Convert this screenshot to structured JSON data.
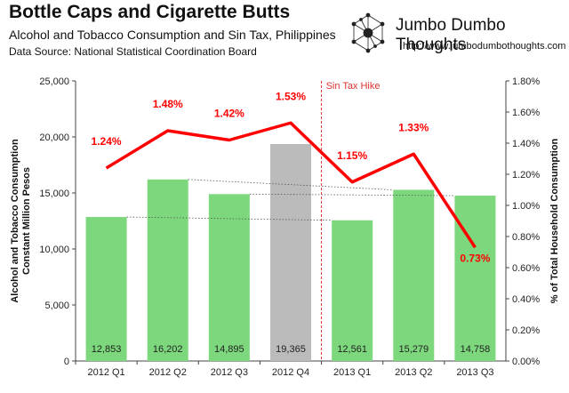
{
  "header": {
    "title": "Bottle Caps and Cigarette Butts",
    "subtitle": "Alcohol and Tobacco Consumption and Sin Tax, Philippines",
    "source": "Data Source: National Statistical Coordination Board"
  },
  "brand": {
    "name": "Jumbo Dumbo Thoughts",
    "url": "http://www.jumbodumbothoughts.com"
  },
  "chart_data": {
    "type": "bar",
    "categories": [
      "2012 Q1",
      "2012 Q2",
      "2012 Q3",
      "2012 Q4",
      "2013 Q1",
      "2013 Q2",
      "2013 Q3"
    ],
    "bars": {
      "values": [
        12853,
        16202,
        14895,
        19365,
        12561,
        15279,
        14758
      ],
      "labels": [
        "12,853",
        "16,202",
        "14,895",
        "19,365",
        "12,561",
        "15,279",
        "14,758"
      ],
      "colors": [
        "#7dd87d",
        "#7dd87d",
        "#7dd87d",
        "#bbbbbb",
        "#7dd87d",
        "#7dd87d",
        "#7dd87d"
      ]
    },
    "line": {
      "values": [
        1.24,
        1.48,
        1.42,
        1.53,
        1.15,
        1.33,
        0.73
      ],
      "labels": [
        "1.24%",
        "1.48%",
        "1.42%",
        "1.53%",
        "1.15%",
        "1.33%",
        "0.73%"
      ],
      "color": "#ff0000"
    },
    "ylabel_left": "Alcohol and Tobacco Consumption Constant Million Pesos",
    "ylabel_left_lines": [
      "Alcohol and Tobacco Consumption",
      "Constant Million Pesos"
    ],
    "ylabel_right": "% of Total Household Consumption",
    "ylim_left": [
      0,
      25000
    ],
    "ylim_right": [
      0,
      1.8
    ],
    "yticks_left": [
      "0",
      "5,000",
      "10,000",
      "15,000",
      "20,000",
      "25,000"
    ],
    "yticks_right": [
      "0.00%",
      "0.20%",
      "0.40%",
      "0.60%",
      "0.80%",
      "1.00%",
      "1.20%",
      "1.40%",
      "1.60%",
      "1.80%"
    ],
    "annotation": "Sin Tax Hike",
    "annotation_between": [
      "2012 Q4",
      "2013 Q1"
    ],
    "comparison_lines": [
      {
        "from": "2012 Q1",
        "to": "2013 Q1"
      },
      {
        "from": "2012 Q2",
        "to": "2013 Q2"
      },
      {
        "from": "2012 Q3",
        "to": "2013 Q3"
      }
    ],
    "grid": false,
    "colors": {
      "bar": "#7dd87d",
      "bar_highlight": "#bbbbbb",
      "line": "#ff0000",
      "annotation": "#dd3333"
    }
  }
}
